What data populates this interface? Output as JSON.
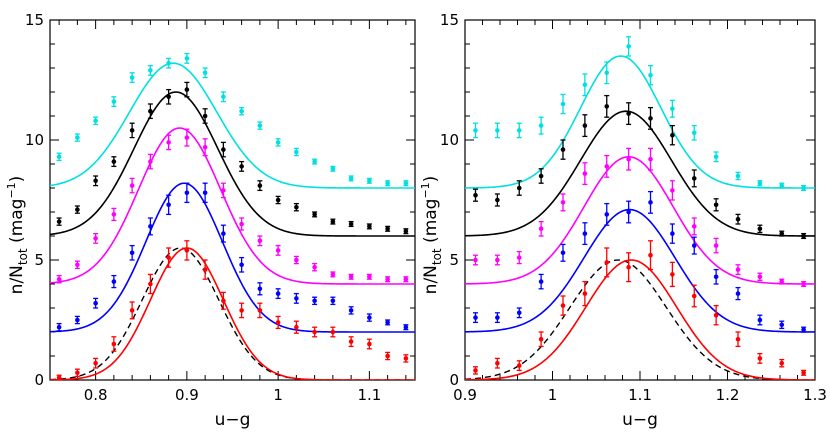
{
  "chart_data": [
    {
      "type": "scatter",
      "xlabel": "u−g",
      "ylabel": "n/N",
      "ylabel_sub": "tot",
      "ylabel_unit": "(mag",
      "ylabel_unit_sup": "−1",
      "ylabel_unit_close": ")",
      "xlim": [
        0.75,
        1.15
      ],
      "ylim": [
        0,
        15
      ],
      "xticks": [
        0.8,
        0.9,
        1,
        1.1
      ],
      "xtick_labels": [
        "0.8",
        "0.9",
        "1",
        "1.1"
      ],
      "yticks": [
        0,
        5,
        10,
        15
      ],
      "ytick_labels": [
        "0",
        "5",
        "10",
        "15"
      ],
      "grid": false,
      "x": [
        0.76,
        0.78,
        0.8,
        0.82,
        0.84,
        0.86,
        0.88,
        0.9,
        0.92,
        0.94,
        0.96,
        0.98,
        1.0,
        1.02,
        1.04,
        1.06,
        1.08,
        1.1,
        1.12,
        1.14
      ],
      "series": [
        {
          "color": "#00e0e0",
          "offset": 8,
          "amp": 5.2,
          "mu": 0.885,
          "sigma": 0.048,
          "values": [
            9.3,
            10.1,
            10.8,
            11.6,
            12.6,
            12.9,
            13.2,
            13.4,
            12.8,
            11.8,
            11.2,
            10.6,
            9.9,
            9.5,
            9.1,
            8.8,
            8.4,
            8.3,
            8.2,
            8.2
          ],
          "errors": [
            0.15,
            0.15,
            0.15,
            0.2,
            0.2,
            0.2,
            0.2,
            0.2,
            0.2,
            0.2,
            0.15,
            0.15,
            0.15,
            0.15,
            0.1,
            0.1,
            0.1,
            0.1,
            0.1,
            0.1
          ]
        },
        {
          "color": "#000000",
          "offset": 6,
          "amp": 6.0,
          "mu": 0.888,
          "sigma": 0.046,
          "values": [
            6.6,
            7.1,
            8.3,
            9.1,
            10.4,
            11.2,
            11.8,
            12.1,
            11.0,
            9.6,
            8.9,
            8.1,
            7.5,
            7.2,
            6.9,
            6.6,
            6.5,
            6.4,
            6.3,
            6.2
          ],
          "errors": [
            0.15,
            0.15,
            0.2,
            0.2,
            0.3,
            0.3,
            0.3,
            0.3,
            0.3,
            0.3,
            0.2,
            0.2,
            0.15,
            0.15,
            0.1,
            0.1,
            0.1,
            0.1,
            0.1,
            0.1
          ]
        },
        {
          "color": "#ff00ff",
          "offset": 4,
          "amp": 6.5,
          "mu": 0.892,
          "sigma": 0.045,
          "values": [
            4.2,
            4.8,
            5.9,
            6.9,
            8.1,
            9.1,
            9.9,
            10.1,
            9.7,
            7.9,
            6.5,
            5.8,
            5.4,
            5.0,
            4.7,
            4.4,
            4.3,
            4.3,
            4.2,
            4.2
          ],
          "errors": [
            0.15,
            0.15,
            0.2,
            0.25,
            0.3,
            0.3,
            0.3,
            0.35,
            0.35,
            0.3,
            0.25,
            0.2,
            0.2,
            0.15,
            0.15,
            0.1,
            0.1,
            0.1,
            0.1,
            0.1
          ]
        },
        {
          "color": "#0000ff",
          "offset": 2,
          "amp": 6.2,
          "mu": 0.897,
          "sigma": 0.042,
          "values": [
            2.2,
            2.5,
            3.2,
            4.1,
            5.3,
            6.4,
            7.3,
            7.8,
            7.8,
            6.1,
            4.8,
            3.8,
            3.6,
            3.4,
            3.3,
            3.3,
            2.9,
            2.6,
            2.4,
            2.2
          ],
          "errors": [
            0.15,
            0.15,
            0.2,
            0.25,
            0.3,
            0.35,
            0.4,
            0.4,
            0.4,
            0.35,
            0.3,
            0.25,
            0.2,
            0.2,
            0.15,
            0.15,
            0.15,
            0.15,
            0.1,
            0.1
          ]
        },
        {
          "color": "#ff0000",
          "offset": 0,
          "amp": 5.5,
          "mu": 0.9,
          "sigma": 0.04,
          "values": [
            0.1,
            0.3,
            0.7,
            1.5,
            2.9,
            4.0,
            5.1,
            5.4,
            4.6,
            3.3,
            2.9,
            2.9,
            2.4,
            2.2,
            2.0,
            2.0,
            1.6,
            1.5,
            1.0,
            0.9
          ],
          "errors": [
            0.1,
            0.15,
            0.2,
            0.3,
            0.35,
            0.4,
            0.4,
            0.4,
            0.4,
            0.35,
            0.3,
            0.3,
            0.25,
            0.25,
            0.2,
            0.2,
            0.2,
            0.2,
            0.15,
            0.15
          ]
        }
      ],
      "reference": {
        "style": "dashed",
        "color": "#000000",
        "amp": 5.5,
        "mu": 0.893,
        "sigma": 0.042
      }
    },
    {
      "type": "scatter",
      "xlabel": "u−g",
      "ylabel": "n/N",
      "ylabel_sub": "tot",
      "ylabel_unit": "(mag",
      "ylabel_unit_sup": "−1",
      "ylabel_unit_close": ")",
      "xlim": [
        0.9,
        1.3
      ],
      "ylim": [
        0,
        15
      ],
      "xticks": [
        0.9,
        1,
        1.1,
        1.2,
        1.3
      ],
      "xtick_labels": [
        "0.9",
        "1",
        "1.1",
        "1.2",
        "1.3"
      ],
      "yticks": [
        0,
        5,
        10,
        15
      ],
      "ytick_labels": [
        "0",
        "5",
        "10",
        "15"
      ],
      "grid": false,
      "x": [
        0.912,
        0.937,
        0.962,
        0.987,
        1.012,
        1.037,
        1.062,
        1.087,
        1.112,
        1.137,
        1.162,
        1.187,
        1.212,
        1.237,
        1.262,
        1.287
      ],
      "series": [
        {
          "color": "#00e0e0",
          "offset": 8,
          "amp": 5.5,
          "mu": 1.078,
          "sigma": 0.046,
          "values": [
            10.4,
            10.4,
            10.4,
            10.6,
            11.5,
            12.3,
            12.8,
            13.9,
            12.7,
            11.3,
            10.3,
            9.3,
            8.5,
            8.2,
            8.1,
            8.0
          ],
          "errors": [
            0.3,
            0.3,
            0.3,
            0.35,
            0.4,
            0.45,
            0.45,
            0.4,
            0.4,
            0.35,
            0.3,
            0.2,
            0.15,
            0.1,
            0.1,
            0.1
          ]
        },
        {
          "color": "#000000",
          "offset": 6,
          "amp": 5.2,
          "mu": 1.084,
          "sigma": 0.052,
          "values": [
            7.7,
            7.5,
            8.0,
            8.5,
            9.6,
            10.6,
            11.4,
            11.1,
            10.9,
            10.2,
            8.4,
            7.3,
            6.7,
            6.3,
            6.1,
            6.0
          ],
          "errors": [
            0.25,
            0.25,
            0.3,
            0.3,
            0.4,
            0.45,
            0.45,
            0.45,
            0.45,
            0.4,
            0.35,
            0.25,
            0.2,
            0.15,
            0.1,
            0.1
          ]
        },
        {
          "color": "#ff00ff",
          "offset": 4,
          "amp": 5.3,
          "mu": 1.087,
          "sigma": 0.051,
          "values": [
            5.0,
            5.0,
            5.1,
            6.3,
            7.4,
            8.6,
            8.9,
            9.2,
            9.2,
            7.9,
            6.4,
            5.6,
            4.6,
            4.3,
            4.1,
            4.0
          ],
          "errors": [
            0.2,
            0.2,
            0.25,
            0.3,
            0.35,
            0.45,
            0.45,
            0.45,
            0.45,
            0.4,
            0.35,
            0.3,
            0.2,
            0.15,
            0.1,
            0.1
          ]
        },
        {
          "color": "#0000ff",
          "offset": 2,
          "amp": 5.1,
          "mu": 1.088,
          "sigma": 0.052,
          "values": [
            2.6,
            2.6,
            2.8,
            4.1,
            5.3,
            6.1,
            6.9,
            7.0,
            7.4,
            6.1,
            5.6,
            4.3,
            3.6,
            2.5,
            2.3,
            2.1
          ],
          "errors": [
            0.2,
            0.2,
            0.2,
            0.3,
            0.35,
            0.45,
            0.45,
            0.45,
            0.45,
            0.4,
            0.35,
            0.3,
            0.25,
            0.2,
            0.15,
            0.1
          ]
        },
        {
          "color": "#ff0000",
          "offset": 0,
          "amp": 5.0,
          "mu": 1.09,
          "sigma": 0.052,
          "values": [
            0.4,
            0.7,
            0.6,
            1.7,
            3.1,
            3.6,
            4.9,
            4.7,
            5.2,
            4.4,
            3.5,
            2.7,
            1.7,
            0.9,
            0.7,
            0.3
          ],
          "errors": [
            0.15,
            0.2,
            0.2,
            0.3,
            0.4,
            0.5,
            0.6,
            0.6,
            0.6,
            0.5,
            0.45,
            0.4,
            0.3,
            0.2,
            0.15,
            0.1
          ]
        }
      ],
      "reference": {
        "style": "dashed",
        "color": "#000000",
        "amp": 5.0,
        "mu": 1.075,
        "sigma": 0.055
      }
    }
  ]
}
